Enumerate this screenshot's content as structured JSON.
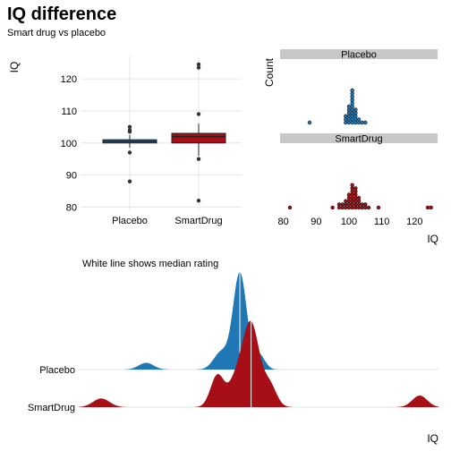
{
  "header": {
    "title": "IQ difference",
    "subtitle": "Smart drug vs placebo"
  },
  "colors": {
    "placebo": "#1f77b4",
    "smartdrug": "#a50f15",
    "strip": "#c8c8c8",
    "grid": "#e6e6e6"
  },
  "chart_data": [
    {
      "id": "boxplot",
      "type": "box",
      "ylabel": "IQ",
      "categories": [
        "Placebo",
        "SmartDrug"
      ],
      "yticks": [
        80,
        90,
        100,
        110,
        120
      ],
      "ylim": [
        79,
        127
      ],
      "boxes": [
        {
          "name": "Placebo",
          "q1": 100,
          "median": 100.5,
          "q3": 101,
          "whisker_low": 98.5,
          "whisker_high": 102.5,
          "outliers": [
            88,
            97,
            103.5,
            104,
            105
          ]
        },
        {
          "name": "SmartDrug",
          "q1": 100,
          "median": 102,
          "q3": 103,
          "whisker_low": 96,
          "whisker_high": 106,
          "outliers": [
            82,
            95,
            109,
            123.5,
            124.5
          ]
        }
      ]
    },
    {
      "id": "dotplot",
      "type": "dotplot",
      "ylabel": "Count",
      "xlabel": "IQ",
      "xticks": [
        80,
        90,
        100,
        110,
        120
      ],
      "xlim": [
        79,
        127
      ],
      "panels": [
        {
          "name": "Placebo",
          "stacks": [
            [
              88,
              1
            ],
            [
              99,
              3
            ],
            [
              100,
              6
            ],
            [
              101,
              11
            ],
            [
              102,
              5
            ],
            [
              103,
              2
            ],
            [
              104,
              1
            ],
            [
              105,
              1
            ]
          ]
        },
        {
          "name": "SmartDrug",
          "stacks": [
            [
              82,
              1
            ],
            [
              95,
              1
            ],
            [
              97,
              2
            ],
            [
              98,
              2
            ],
            [
              99,
              3
            ],
            [
              100,
              5
            ],
            [
              101,
              8
            ],
            [
              102,
              7
            ],
            [
              103,
              4
            ],
            [
              104,
              2
            ],
            [
              105,
              2
            ],
            [
              106,
              1
            ],
            [
              109,
              1
            ],
            [
              124,
              1
            ],
            [
              125,
              1
            ]
          ]
        }
      ]
    },
    {
      "id": "ridgeline",
      "type": "area",
      "xlabel": "IQ",
      "annotation": "White line shows median rating",
      "xlim": [
        79,
        127
      ],
      "series": [
        {
          "name": "Placebo",
          "median": 100.5,
          "peaks": [
            [
              88,
              1,
              0.07
            ],
            [
              98,
              1.0,
              0.18
            ],
            [
              100.5,
              0.9,
              1.0
            ],
            [
              103,
              0.8,
              0.16
            ]
          ]
        },
        {
          "name": "SmartDrug",
          "median": 102,
          "peaks": [
            [
              82,
              1.1,
              0.09
            ],
            [
              97.5,
              0.9,
              0.33
            ],
            [
              100,
              1.0,
              0.26
            ],
            [
              102,
              1.1,
              0.85
            ],
            [
              104.5,
              0.9,
              0.22
            ],
            [
              124.5,
              1.0,
              0.12
            ]
          ]
        }
      ]
    }
  ]
}
